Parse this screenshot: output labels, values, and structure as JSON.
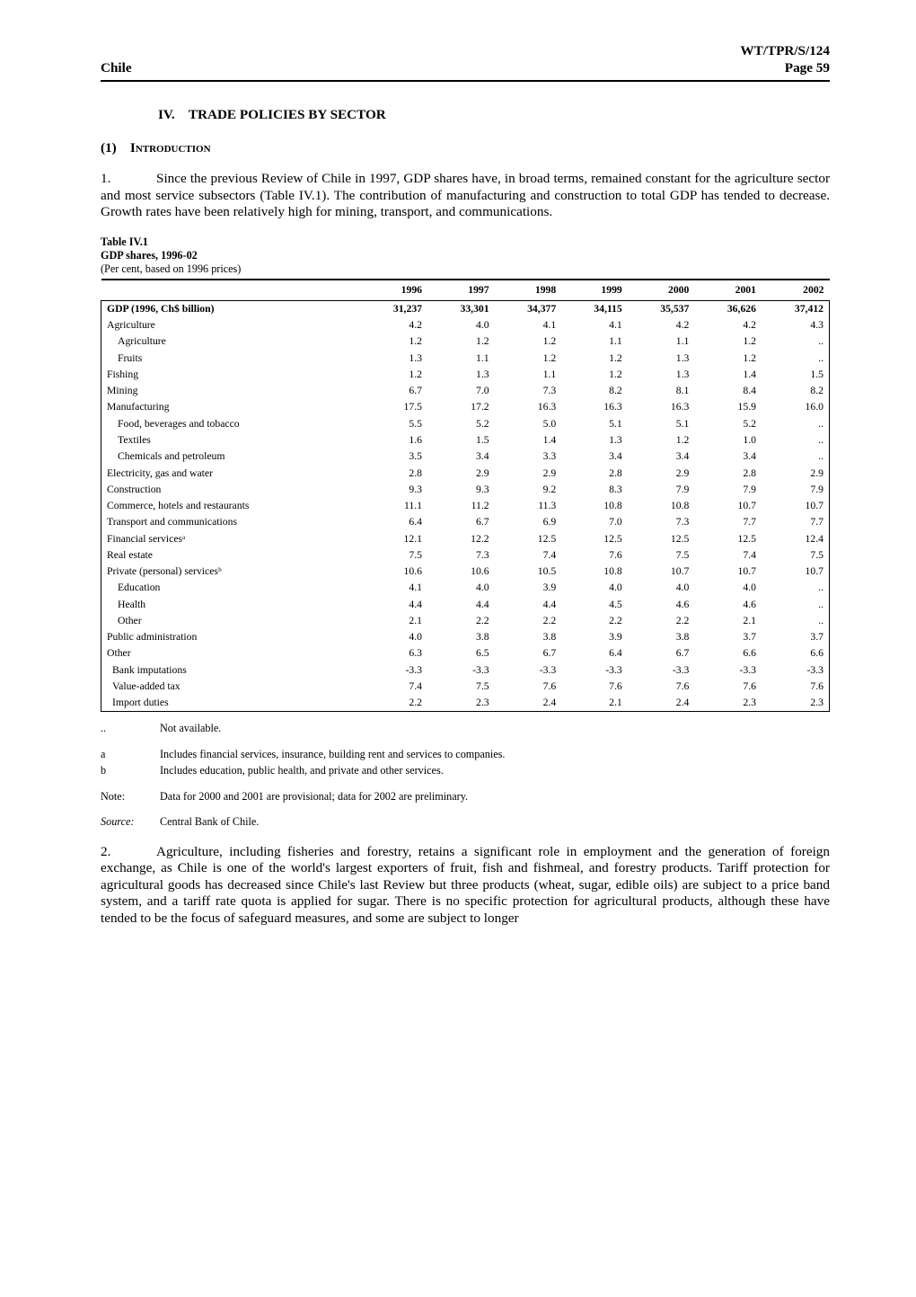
{
  "header": {
    "left": "Chile",
    "right1": "WT/TPR/S/124",
    "right2": "Page 59"
  },
  "section_title": "IV. TRADE POLICIES BY SECTOR",
  "subsection": {
    "num": "(1)",
    "label": "Introduction"
  },
  "para1": {
    "num": "1.",
    "text": "Since the previous Review of Chile in 1997, GDP shares have, in broad terms, remained constant for the agriculture sector and most service subsectors (Table IV.1).  The contribution of manufacturing and construction to total GDP has tended to decrease.  Growth rates have been relatively high for mining, transport, and communications."
  },
  "table_caption": {
    "l1": "Table IV.1",
    "l2": "GDP shares, 1996-02",
    "l3": "(Per cent, based on 1996 prices)"
  },
  "columns": [
    "1996",
    "1997",
    "1998",
    "1999",
    "2000",
    "2001",
    "2002"
  ],
  "rows": [
    {
      "label": "GDP (1996, Ch$ billion)",
      "vals": [
        "31,237",
        "33,301",
        "34,377",
        "34,115",
        "35,537",
        "36,626",
        "37,412"
      ],
      "bold": true
    },
    {
      "label": "Agriculture",
      "vals": [
        "4.2",
        "4.0",
        "4.1",
        "4.1",
        "4.2",
        "4.2",
        "4.3"
      ]
    },
    {
      "label": "Agriculture",
      "vals": [
        "1.2",
        "1.2",
        "1.2",
        "1.1",
        "1.1",
        "1.2",
        ".."
      ],
      "indent": 1
    },
    {
      "label": "Fruits",
      "vals": [
        "1.3",
        "1.1",
        "1.2",
        "1.2",
        "1.3",
        "1.2",
        ".."
      ],
      "indent": 1
    },
    {
      "label": "Fishing",
      "vals": [
        "1.2",
        "1.3",
        "1.1",
        "1.2",
        "1.3",
        "1.4",
        "1.5"
      ]
    },
    {
      "label": "Mining",
      "vals": [
        "6.7",
        "7.0",
        "7.3",
        "8.2",
        "8.1",
        "8.4",
        "8.2"
      ]
    },
    {
      "label": "Manufacturing",
      "vals": [
        "17.5",
        "17.2",
        "16.3",
        "16.3",
        "16.3",
        "15.9",
        "16.0"
      ]
    },
    {
      "label": "Food, beverages and tobacco",
      "vals": [
        "5.5",
        "5.2",
        "5.0",
        "5.1",
        "5.1",
        "5.2",
        ".."
      ],
      "indent": 1
    },
    {
      "label": "Textiles",
      "vals": [
        "1.6",
        "1.5",
        "1.4",
        "1.3",
        "1.2",
        "1.0",
        ".."
      ],
      "indent": 1
    },
    {
      "label": "Chemicals and petroleum",
      "vals": [
        "3.5",
        "3.4",
        "3.3",
        "3.4",
        "3.4",
        "3.4",
        ".."
      ],
      "indent": 1
    },
    {
      "label": "Electricity, gas and water",
      "vals": [
        "2.8",
        "2.9",
        "2.9",
        "2.8",
        "2.9",
        "2.8",
        "2.9"
      ]
    },
    {
      "label": "Construction",
      "vals": [
        "9.3",
        "9.3",
        "9.2",
        "8.3",
        "7.9",
        "7.9",
        "7.9"
      ]
    },
    {
      "label": "Commerce, hotels and restaurants",
      "vals": [
        "11.1",
        "11.2",
        "11.3",
        "10.8",
        "10.8",
        "10.7",
        "10.7"
      ]
    },
    {
      "label": "Transport and communications",
      "vals": [
        "6.4",
        "6.7",
        "6.9",
        "7.0",
        "7.3",
        "7.7",
        "7.7"
      ]
    },
    {
      "label": "Financial servicesᵃ",
      "vals": [
        "12.1",
        "12.2",
        "12.5",
        "12.5",
        "12.5",
        "12.5",
        "12.4"
      ]
    },
    {
      "label": "Real estate",
      "vals": [
        "7.5",
        "7.3",
        "7.4",
        "7.6",
        "7.5",
        "7.4",
        "7.5"
      ]
    },
    {
      "label": "Private (personal) servicesᵇ",
      "vals": [
        "10.6",
        "10.6",
        "10.5",
        "10.8",
        "10.7",
        "10.7",
        "10.7"
      ]
    },
    {
      "label": "Education",
      "vals": [
        "4.1",
        "4.0",
        "3.9",
        "4.0",
        "4.0",
        "4.0",
        ".."
      ],
      "indent": 1
    },
    {
      "label": "Health",
      "vals": [
        "4.4",
        "4.4",
        "4.4",
        "4.5",
        "4.6",
        "4.6",
        ".."
      ],
      "indent": 1
    },
    {
      "label": "Other",
      "vals": [
        "2.1",
        "2.2",
        "2.2",
        "2.2",
        "2.2",
        "2.1",
        ".."
      ],
      "indent": 1
    },
    {
      "label": "Public administration",
      "vals": [
        "4.0",
        "3.8",
        "3.8",
        "3.9",
        "3.8",
        "3.7",
        "3.7"
      ]
    },
    {
      "label": "Other",
      "vals": [
        "6.3",
        "6.5",
        "6.7",
        "6.4",
        "6.7",
        "6.6",
        "6.6"
      ]
    },
    {
      "label": "Bank imputations",
      "vals": [
        "-3.3",
        "-3.3",
        "-3.3",
        "-3.3",
        "-3.3",
        "-3.3",
        "-3.3"
      ],
      "indent": 0.5
    },
    {
      "label": "Value-added tax",
      "vals": [
        "7.4",
        "7.5",
        "7.6",
        "7.6",
        "7.6",
        "7.6",
        "7.6"
      ],
      "indent": 0.5
    },
    {
      "label": "Import duties",
      "vals": [
        "2.2",
        "2.3",
        "2.4",
        "2.1",
        "2.4",
        "2.3",
        "2.3"
      ],
      "indent": 0.5
    }
  ],
  "notes": {
    "na": {
      "k": "..",
      "v": "Not available."
    },
    "a": {
      "k": "a",
      "v": "Includes financial services, insurance, building rent and services to companies."
    },
    "b": {
      "k": "b",
      "v": "Includes education, public health, and private and other services."
    },
    "note": {
      "k": "Note:",
      "v": "Data for 2000 and 2001 are provisional;  data for 2002 are preliminary."
    },
    "source": {
      "k": "Source:",
      "v": "Central Bank of Chile."
    }
  },
  "para2": {
    "num": "2.",
    "text": "Agriculture, including fisheries and forestry, retains a significant role in employment and the generation of foreign exchange, as Chile is one of the world's largest exporters of fruit, fish and fishmeal, and forestry products.  Tariff protection for agricultural goods has decreased since Chile's last Review but three products (wheat, sugar, edible oils) are subject to a price band system, and a tariff rate quota is applied for sugar.  There is no specific protection for agricultural products, although these have tended to be the focus of safeguard measures, and some are subject to longer"
  }
}
